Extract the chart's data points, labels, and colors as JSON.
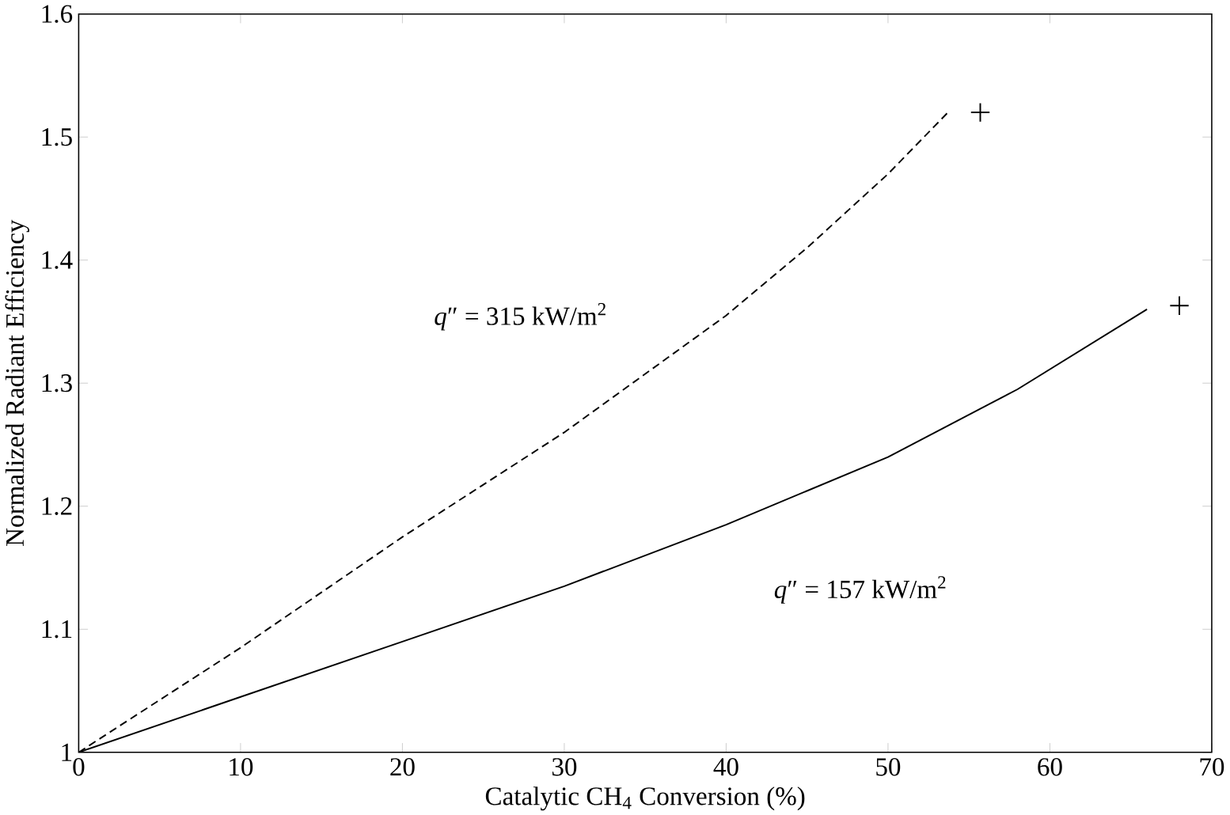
{
  "chart_data": {
    "type": "line",
    "xlabel": "Catalytic CH$_{4}$ Conversion (%)",
    "ylabel": "Normalized Radiant Efficiency",
    "xlim": [
      0,
      70
    ],
    "ylim": [
      1,
      1.6
    ],
    "xticks": [
      0,
      10,
      20,
      30,
      40,
      50,
      60,
      70
    ],
    "yticks": [
      1,
      1.1,
      1.2,
      1.3,
      1.4,
      1.5,
      1.6
    ],
    "grid": false,
    "series": [
      {
        "line_style": "dashed",
        "color": "#000000",
        "x": [
          0,
          10,
          20,
          30,
          40,
          45,
          50,
          53.7
        ],
        "values": [
          1,
          1.085,
          1.175,
          1.26,
          1.355,
          1.41,
          1.47,
          1.52
        ]
      },
      {
        "line_style": "solid",
        "color": "#000000",
        "x": [
          0,
          10,
          20,
          30,
          40,
          50,
          58,
          66
        ],
        "values": [
          1,
          1.045,
          1.09,
          1.135,
          1.185,
          1.24,
          1.295,
          1.36
        ]
      },
      {
        "type": "scatter",
        "marker": "cross",
        "color": "#000000",
        "x": [
          55.7,
          68
        ],
        "values": [
          1.52,
          1.363
        ]
      }
    ],
    "annotations": [
      "*q*″ = 315 kW/m$^{2}$",
      "*q*″ = 157 kW/m$^{2}$"
    ]
  }
}
